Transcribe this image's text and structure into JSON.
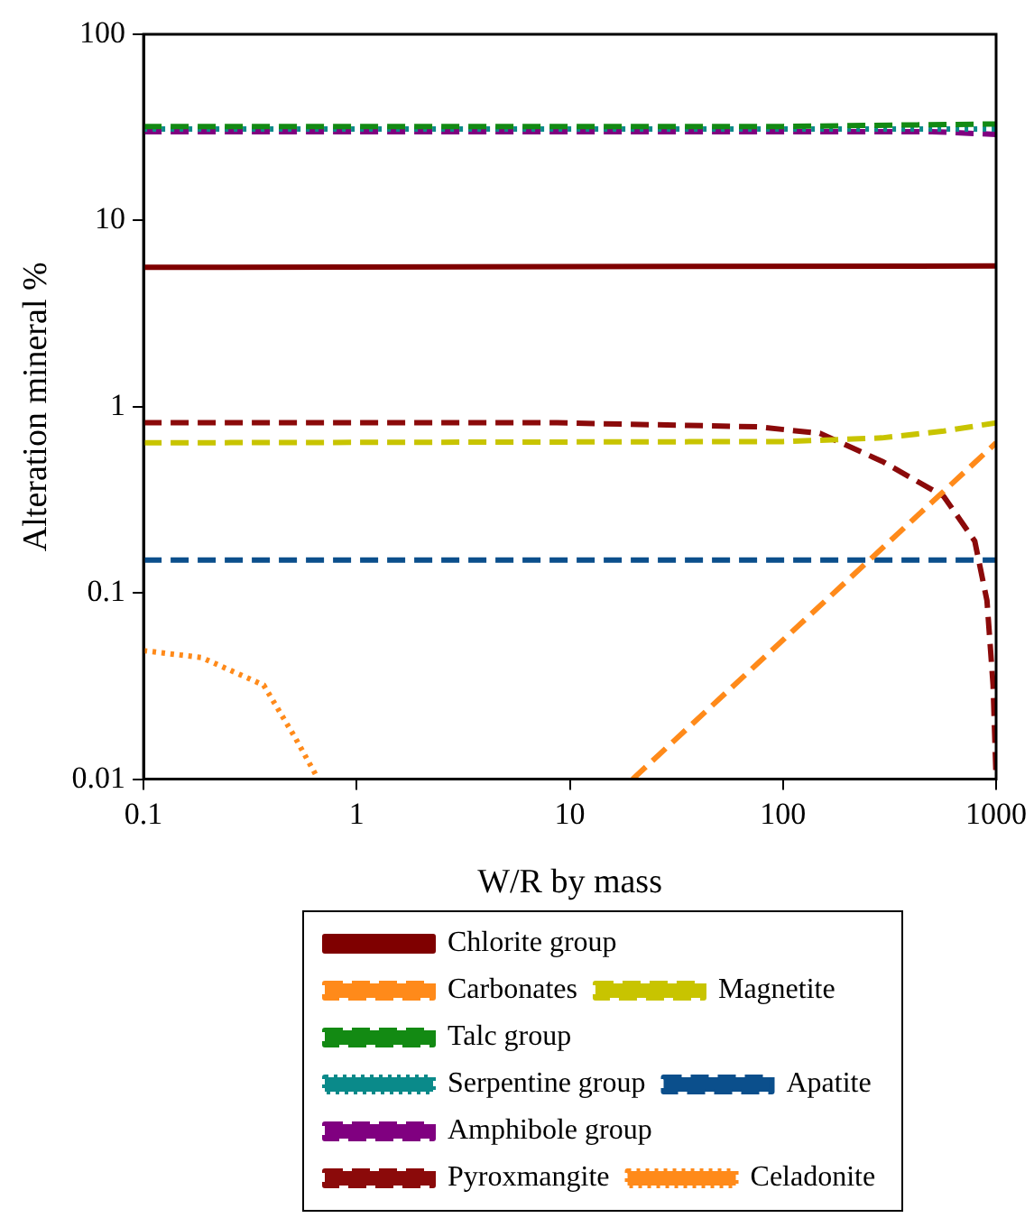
{
  "chart_data": {
    "type": "line",
    "xlabel": "W/R by mass",
    "ylabel": "Alteration mineral %",
    "log": "xy",
    "xlim": [
      0.1,
      1000
    ],
    "xticks": [
      0.1,
      1,
      10,
      100,
      1000
    ],
    "ylim": [
      0.01,
      100
    ],
    "yticks": [
      0.01,
      0.1,
      1,
      10,
      100
    ],
    "grid": false,
    "legend": "bottom",
    "marker": "none",
    "series": [
      {
        "name": "Chlorite group",
        "color": "#7f0000",
        "line_style": "solid",
        "x": [
          0.1,
          1000
        ],
        "values": [
          5.6,
          5.7
        ]
      },
      {
        "name": "Carbonates",
        "color": "#ff8a1a",
        "line_style": "dashed",
        "x": [
          19.7,
          1000
        ],
        "values": [
          0.01,
          0.64
        ]
      },
      {
        "name": "Magnetite",
        "color": "#c8c400",
        "line_style": "dashed",
        "x": [
          0.1,
          100,
          291,
          568,
          1000
        ],
        "values": [
          0.64,
          0.65,
          0.68,
          0.74,
          0.82
        ]
      },
      {
        "name": "Talc group",
        "color": "#138a13",
        "line_style": "dashed",
        "x": [
          0.1,
          100,
          1000
        ],
        "values": [
          32,
          32,
          33
        ]
      },
      {
        "name": "Serpentine group",
        "color": "#0a8a8a",
        "line_style": "dotted",
        "x": [
          0.1,
          1000
        ],
        "values": [
          31,
          31
        ]
      },
      {
        "name": "Apatite",
        "color": "#0b4f8c",
        "line_style": "dashed",
        "x": [
          0.1,
          1000
        ],
        "values": [
          0.15,
          0.15
        ]
      },
      {
        "name": "Amphibole group",
        "color": "#800080",
        "line_style": "dashed",
        "x": [
          0.1,
          500,
          1000
        ],
        "values": [
          30,
          30,
          29
        ]
      },
      {
        "name": "Pyroxmangite",
        "color": "#8b0a0a",
        "line_style": "dashed",
        "x": [
          0.1,
          8.7,
          76,
          149,
          291,
          568,
          794,
          906,
          968,
          1000
        ],
        "values": [
          0.82,
          0.82,
          0.78,
          0.72,
          0.51,
          0.33,
          0.19,
          0.091,
          0.032,
          0.01
        ]
      },
      {
        "name": "Celadonite",
        "color": "#ff8a1a",
        "line_style": "dotted",
        "x": [
          0.1,
          0.187,
          0.366,
          0.51,
          0.66
        ],
        "values": [
          0.049,
          0.045,
          0.032,
          0.017,
          0.01
        ]
      }
    ]
  }
}
